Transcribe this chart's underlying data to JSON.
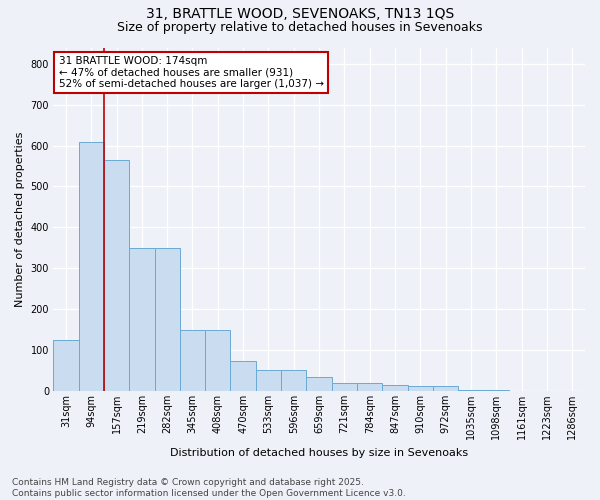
{
  "title_line1": "31, BRATTLE WOOD, SEVENOAKS, TN13 1QS",
  "title_line2": "Size of property relative to detached houses in Sevenoaks",
  "xlabel": "Distribution of detached houses by size in Sevenoaks",
  "ylabel": "Number of detached properties",
  "categories": [
    "31sqm",
    "94sqm",
    "157sqm",
    "219sqm",
    "282sqm",
    "345sqm",
    "408sqm",
    "470sqm",
    "533sqm",
    "596sqm",
    "659sqm",
    "721sqm",
    "784sqm",
    "847sqm",
    "910sqm",
    "972sqm",
    "1035sqm",
    "1098sqm",
    "1161sqm",
    "1223sqm",
    "1286sqm"
  ],
  "values": [
    125,
    608,
    565,
    350,
    350,
    148,
    148,
    73,
    50,
    50,
    35,
    20,
    20,
    15,
    12,
    12,
    2,
    2,
    0,
    0,
    0
  ],
  "bar_color": "#c9dcf0",
  "bar_edge_color": "#6aaad4",
  "vline_x": 1.5,
  "vline_color": "#c00000",
  "annotation_text": "31 BRATTLE WOOD: 174sqm\n← 47% of detached houses are smaller (931)\n52% of semi-detached houses are larger (1,037) →",
  "annotation_box_facecolor": "#ffffff",
  "annotation_box_edgecolor": "#c00000",
  "ylim": [
    0,
    840
  ],
  "yticks": [
    0,
    100,
    200,
    300,
    400,
    500,
    600,
    700,
    800
  ],
  "footer_line1": "Contains HM Land Registry data © Crown copyright and database right 2025.",
  "footer_line2": "Contains public sector information licensed under the Open Government Licence v3.0.",
  "bg_color": "#eef2f8",
  "plot_bg_color": "#eef2f8",
  "grid_color": "#ffffff",
  "title_fontsize": 10,
  "subtitle_fontsize": 9,
  "axis_label_fontsize": 8,
  "tick_fontsize": 7,
  "annot_fontsize": 7.5,
  "footer_fontsize": 6.5
}
